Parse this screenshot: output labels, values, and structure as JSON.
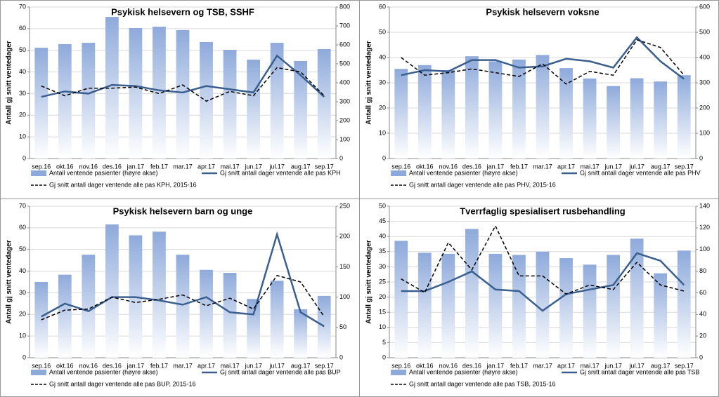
{
  "chart_data": [
    {
      "type": "combo",
      "title": "Psykisk helsevern og TSB, SSHF",
      "y_label": "Antall gj snitt ventedager",
      "categories": [
        "sep.16",
        "okt.16",
        "nov.16",
        "des.16",
        "jan.17",
        "feb.17",
        "mar.17",
        "apr.17",
        "mai.17",
        "jun.17",
        "jul.17",
        "aug.17",
        "sep.17"
      ],
      "ylim": [
        0,
        70
      ],
      "yticks": [
        0,
        10,
        20,
        30,
        40,
        50,
        60,
        70
      ],
      "y2lim": [
        0,
        800
      ],
      "y2ticks": [
        0,
        100,
        200,
        300,
        400,
        500,
        600,
        700,
        800
      ],
      "series": [
        {
          "name": "Antall ventende pasienter (høyre akse)",
          "kind": "bar",
          "axis": "y2",
          "color": "#8eaadb",
          "values": [
            585,
            604,
            611,
            748,
            689,
            696,
            678,
            615,
            574,
            522,
            611,
            515,
            578
          ]
        },
        {
          "name": "Gj snitt antall dager ventende alle pas KPH",
          "kind": "line",
          "style": "solid",
          "color": "#3a5f8f",
          "values": [
            28.5,
            31,
            30,
            34,
            33.5,
            31.5,
            30.5,
            33.5,
            32,
            30.5,
            47.5,
            38.5,
            28.5
          ]
        },
        {
          "name": "Gj snitt antall dager ventende alle pas KPH, 2015-16",
          "kind": "line",
          "style": "dashed",
          "color": "#000000",
          "values": [
            33.5,
            29,
            32.5,
            32.5,
            33,
            30,
            34,
            26.5,
            31,
            29,
            42,
            40,
            29
          ]
        }
      ]
    },
    {
      "type": "combo",
      "title": "Psykisk helsevern voksne",
      "y_label": "Antall gj snitt ventedager",
      "categories": [
        "sep.16",
        "okt.16",
        "nov.16",
        "des.16",
        "jan.17",
        "feb.17",
        "mar.17",
        "apr.17",
        "mai.17",
        "jun.17",
        "jul.17",
        "aug.17",
        "sep.17"
      ],
      "ylim": [
        0,
        60
      ],
      "yticks": [
        0,
        10,
        20,
        30,
        40,
        50,
        60
      ],
      "y2lim": [
        0,
        600
      ],
      "y2ticks": [
        0,
        100,
        200,
        300,
        400,
        500,
        600
      ],
      "series": [
        {
          "name": "Antall ventende pasienter (høyre akse)",
          "kind": "bar",
          "axis": "y2",
          "color": "#8eaadb",
          "values": [
            355,
            370,
            350,
            405,
            385,
            392,
            410,
            358,
            317,
            287,
            318,
            305,
            330
          ]
        },
        {
          "name": "Gj snitt antall dager ventende alle pas PHV",
          "kind": "line",
          "style": "solid",
          "color": "#3a5f8f",
          "values": [
            33,
            35,
            34.5,
            39,
            39,
            36,
            36.5,
            39.5,
            38.5,
            36,
            48,
            38.5,
            31.5
          ]
        },
        {
          "name": "Gj snitt antall dager ventende alle pas PHV, 2015-16",
          "kind": "line",
          "style": "dashed",
          "color": "#000000",
          "values": [
            40,
            33,
            34,
            35.5,
            34,
            32.5,
            37.5,
            29.5,
            34.5,
            33,
            47,
            44,
            33
          ]
        }
      ]
    },
    {
      "type": "combo",
      "title": "Psykisk helsevern barn og unge",
      "y_label": "Antall gj snitt ventedager",
      "categories": [
        "sep.16",
        "okt.16",
        "nov.16",
        "des.16",
        "jan.17",
        "feb.17",
        "mar.17",
        "apr.17",
        "mai.17",
        "jun.17",
        "jul.17",
        "aug.17",
        "sep.17"
      ],
      "ylim": [
        0,
        70
      ],
      "yticks": [
        0,
        10,
        20,
        30,
        40,
        50,
        60,
        70
      ],
      "y2lim": [
        0,
        250
      ],
      "y2ticks": [
        0,
        50,
        100,
        150,
        200,
        250
      ],
      "series": [
        {
          "name": "Antall ventende pasienter (høyre akse)",
          "kind": "bar",
          "axis": "y2",
          "color": "#8eaadb",
          "values": [
            125,
            137,
            170,
            220,
            202,
            208,
            170,
            145,
            140,
            97,
            127,
            80,
            102
          ]
        },
        {
          "name": "Gj snitt antall dager ventende alle pas BUP",
          "kind": "line",
          "style": "solid",
          "color": "#3a5f8f",
          "values": [
            19,
            25,
            21.5,
            28,
            28,
            26.5,
            24.5,
            28,
            21,
            20,
            57,
            21,
            14.5
          ]
        },
        {
          "name": "Gj snitt antall dager ventende alle pas BUP, 2015-16",
          "kind": "line",
          "style": "dashed",
          "color": "#000000",
          "values": [
            17.5,
            22,
            22.5,
            28,
            25.5,
            27,
            29,
            24,
            27.5,
            22.5,
            38,
            35,
            19
          ]
        }
      ]
    },
    {
      "type": "combo",
      "title": "Tverrfaglig spesialisert rusbehandling",
      "y_label": "Antall gj snitt ventedager",
      "categories": [
        "sep.16",
        "okt.16",
        "nov.16",
        "des.16",
        "jan.17",
        "feb.17",
        "mar.17",
        "apr.17",
        "mai.17",
        "jun.17",
        "jul.17",
        "aug.17",
        "sep.17"
      ],
      "ylim": [
        0,
        50
      ],
      "yticks": [
        0,
        5,
        10,
        15,
        20,
        25,
        30,
        35,
        40,
        45,
        50
      ],
      "y2lim": [
        0,
        140
      ],
      "y2ticks": [
        0,
        20,
        40,
        60,
        80,
        100,
        120,
        140
      ],
      "series": [
        {
          "name": "Antall ventende pasienter (høyre akse)",
          "kind": "bar",
          "axis": "y2",
          "color": "#8eaadb",
          "values": [
            108,
            97,
            96,
            119,
            96,
            95,
            98,
            92,
            86,
            95,
            110,
            78,
            99
          ]
        },
        {
          "name": "Gj snitt antall dager ventende alle pas TSB",
          "kind": "line",
          "style": "solid",
          "color": "#3a5f8f",
          "values": [
            22,
            22,
            25,
            28.5,
            22.5,
            22,
            15.5,
            21,
            22.5,
            24,
            34.5,
            32,
            24
          ]
        },
        {
          "name": "Gj snitt antall dager ventende alle pas TSB, 2015-16",
          "kind": "line",
          "style": "dashed",
          "color": "#000000",
          "values": [
            26,
            21.5,
            38,
            29,
            43.5,
            27,
            27,
            21,
            24,
            22.5,
            31.5,
            24,
            22
          ]
        }
      ]
    }
  ]
}
